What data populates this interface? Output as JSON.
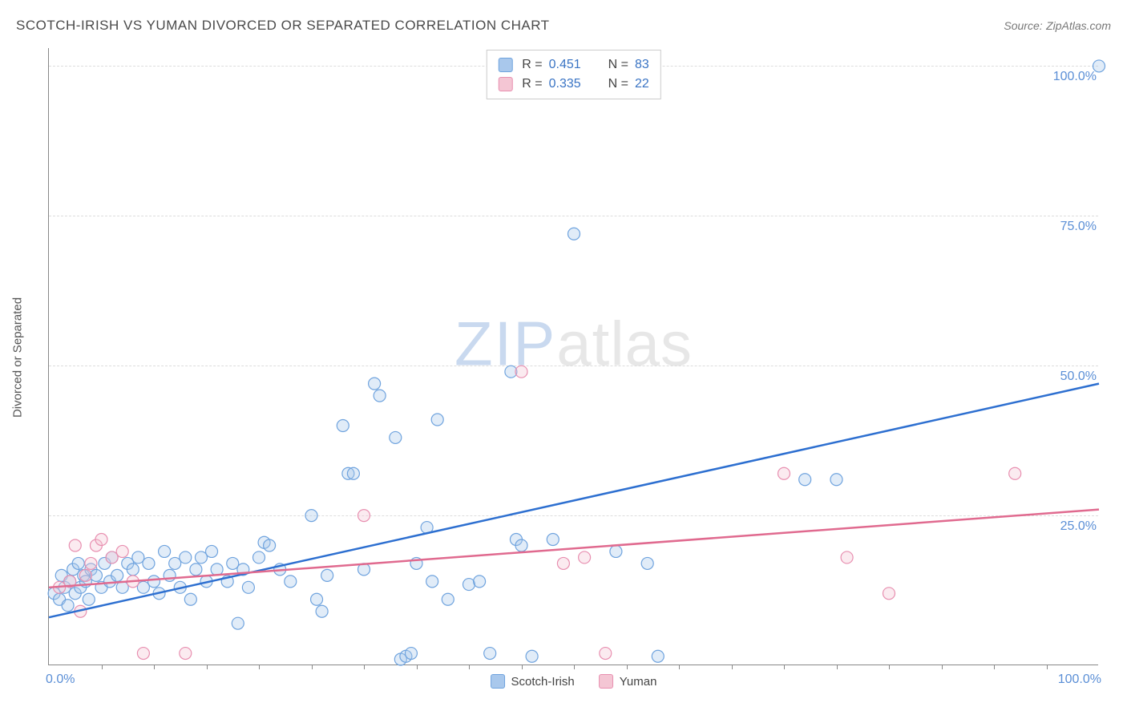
{
  "title": "SCOTCH-IRISH VS YUMAN DIVORCED OR SEPARATED CORRELATION CHART",
  "source_label": "Source:",
  "source_value": "ZipAtlas.com",
  "y_axis_title": "Divorced or Separated",
  "watermark_a": "ZIP",
  "watermark_b": "atlas",
  "chart": {
    "type": "scatter",
    "xlim": [
      0,
      100
    ],
    "ylim": [
      0,
      103
    ],
    "x_ticks": [
      0,
      100
    ],
    "x_tick_labels": [
      "0.0%",
      "100.0%"
    ],
    "x_minor_ticks": [
      5,
      10,
      15,
      20,
      25,
      30,
      35,
      40,
      45,
      50,
      55,
      60,
      65,
      70,
      75,
      80,
      85,
      90,
      95
    ],
    "y_gridlines": [
      0,
      25,
      50,
      75,
      100
    ],
    "y_tick_labels": [
      "0.0%",
      "25.0%",
      "50.0%",
      "75.0%",
      "100.0%"
    ],
    "background_color": "#ffffff",
    "grid_color": "#dddddd",
    "axis_color": "#888888",
    "marker_radius": 7.5,
    "trend_line_width": 2.5
  },
  "series": [
    {
      "name": "Scotch-Irish",
      "color_fill": "#a9c8ec",
      "color_stroke": "#6fa3de",
      "trend_color": "#2d6fd0",
      "R": "0.451",
      "N": "83",
      "trend": {
        "x1": 0,
        "y1": 8,
        "x2": 100,
        "y2": 47
      },
      "points": [
        [
          0.5,
          12
        ],
        [
          1,
          11
        ],
        [
          1.2,
          15
        ],
        [
          1.5,
          13
        ],
        [
          1.8,
          10
        ],
        [
          2,
          14
        ],
        [
          2.3,
          16
        ],
        [
          2.5,
          12
        ],
        [
          2.8,
          17
        ],
        [
          3,
          13
        ],
        [
          3.3,
          15
        ],
        [
          3.5,
          14
        ],
        [
          3.8,
          11
        ],
        [
          4,
          16
        ],
        [
          4.5,
          15
        ],
        [
          5,
          13
        ],
        [
          5.3,
          17
        ],
        [
          5.8,
          14
        ],
        [
          6,
          18
        ],
        [
          6.5,
          15
        ],
        [
          7,
          13
        ],
        [
          7.5,
          17
        ],
        [
          8,
          16
        ],
        [
          8.5,
          18
        ],
        [
          9,
          13
        ],
        [
          9.5,
          17
        ],
        [
          10,
          14
        ],
        [
          10.5,
          12
        ],
        [
          11,
          19
        ],
        [
          11.5,
          15
        ],
        [
          12,
          17
        ],
        [
          12.5,
          13
        ],
        [
          13,
          18
        ],
        [
          13.5,
          11
        ],
        [
          14,
          16
        ],
        [
          14.5,
          18
        ],
        [
          15,
          14
        ],
        [
          15.5,
          19
        ],
        [
          16,
          16
        ],
        [
          17,
          14
        ],
        [
          17.5,
          17
        ],
        [
          18,
          7
        ],
        [
          18.5,
          16
        ],
        [
          19,
          13
        ],
        [
          20,
          18
        ],
        [
          20.5,
          20.5
        ],
        [
          21,
          20
        ],
        [
          22,
          16
        ],
        [
          23,
          14
        ],
        [
          25,
          25
        ],
        [
          25.5,
          11
        ],
        [
          26,
          9
        ],
        [
          26.5,
          15
        ],
        [
          28,
          40
        ],
        [
          28.5,
          32
        ],
        [
          29,
          32
        ],
        [
          30,
          16
        ],
        [
          31,
          47
        ],
        [
          31.5,
          45
        ],
        [
          33,
          38
        ],
        [
          33.5,
          1
        ],
        [
          34,
          1.5
        ],
        [
          34.5,
          2
        ],
        [
          35,
          17
        ],
        [
          36,
          23
        ],
        [
          36.5,
          14
        ],
        [
          37,
          41
        ],
        [
          38,
          11
        ],
        [
          40,
          13.5
        ],
        [
          41,
          14
        ],
        [
          42,
          2
        ],
        [
          44,
          49
        ],
        [
          44.5,
          21
        ],
        [
          45,
          20
        ],
        [
          46,
          1.5
        ],
        [
          48,
          21
        ],
        [
          50,
          72
        ],
        [
          54,
          19
        ],
        [
          57,
          17
        ],
        [
          58,
          1.5
        ],
        [
          72,
          31
        ],
        [
          75,
          31
        ],
        [
          100,
          100
        ]
      ]
    },
    {
      "name": "Yuman",
      "color_fill": "#f4c6d4",
      "color_stroke": "#e88fb0",
      "trend_color": "#e06a8f",
      "R": "0.335",
      "N": "22",
      "trend": {
        "x1": 0,
        "y1": 13,
        "x2": 100,
        "y2": 26
      },
      "points": [
        [
          1,
          13
        ],
        [
          2,
          14
        ],
        [
          2.5,
          20
        ],
        [
          3,
          9
        ],
        [
          3.5,
          15
        ],
        [
          4,
          17
        ],
        [
          4.5,
          20
        ],
        [
          5,
          21
        ],
        [
          6,
          18
        ],
        [
          7,
          19
        ],
        [
          8,
          14
        ],
        [
          9,
          2
        ],
        [
          13,
          2
        ],
        [
          30,
          25
        ],
        [
          45,
          49
        ],
        [
          49,
          17
        ],
        [
          51,
          18
        ],
        [
          53,
          2
        ],
        [
          70,
          32
        ],
        [
          76,
          18
        ],
        [
          80,
          12
        ],
        [
          92,
          32
        ]
      ]
    }
  ],
  "legend_top": {
    "R_label": "R =",
    "N_label": "N ="
  }
}
